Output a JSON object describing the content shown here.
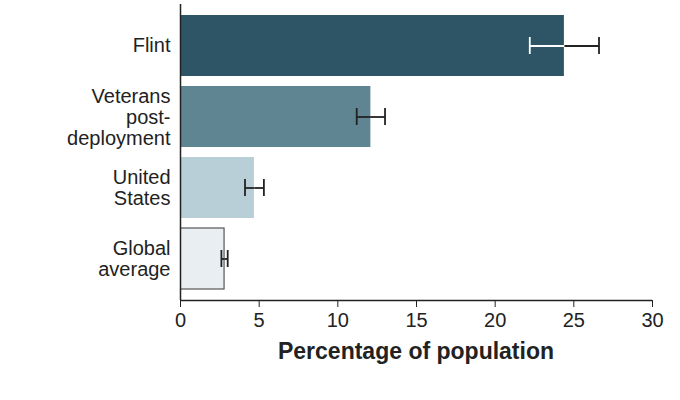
{
  "chart_data": {
    "type": "bar",
    "orientation": "horizontal",
    "categories": [
      "Flint",
      "Veterans\npost-\ndeployment",
      "United\nStates",
      "Global\naverage"
    ],
    "values": [
      24.4,
      12.1,
      4.7,
      2.8
    ],
    "error_low": [
      22.2,
      11.2,
      4.1,
      2.6
    ],
    "error_high": [
      26.6,
      13.0,
      5.3,
      3.0
    ],
    "colors": [
      "#2e5566",
      "#5f8593",
      "#b9cfd8",
      "#e8eef2"
    ],
    "xlabel": "Percentage of population",
    "xlim": [
      0,
      30
    ],
    "xticks": [
      0,
      5,
      10,
      15,
      20,
      25,
      30
    ],
    "grid": false
  }
}
